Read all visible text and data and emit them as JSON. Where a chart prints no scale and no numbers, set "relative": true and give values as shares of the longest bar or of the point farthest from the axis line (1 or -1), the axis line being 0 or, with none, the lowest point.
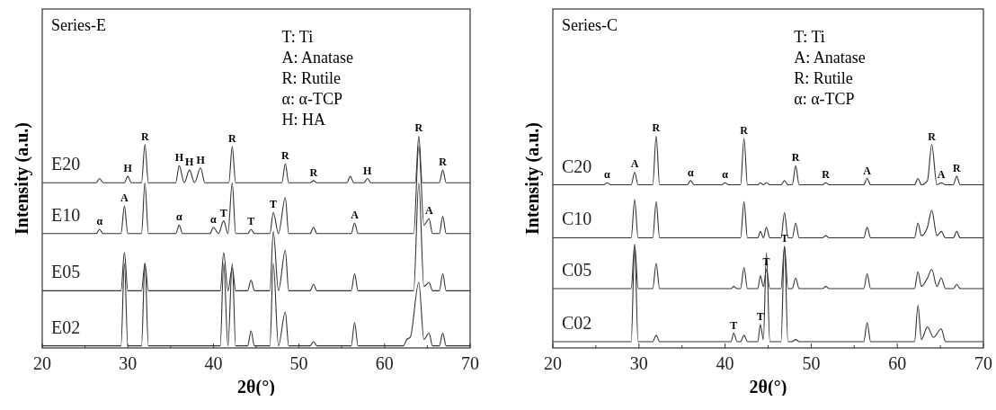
{
  "chart_data": [
    {
      "type": "line",
      "relative": true,
      "xlabel": "2θ(°)",
      "ylabel": "Intensity (a.u.)",
      "xlim": [
        20,
        70
      ],
      "xticks": [
        20,
        {
          "value": 25,
          "label": null
        },
        30,
        {
          "value": 35,
          "label": null
        },
        40,
        {
          "value": 45,
          "label": null
        },
        50,
        {
          "value": 55,
          "label": null
        },
        60,
        {
          "value": 65,
          "label": null
        },
        70
      ],
      "series": [
        {
          "name": "E20",
          "color": "#333333",
          "x": [
            20,
            26.3,
            26.7,
            27.1,
            29.6,
            30,
            30.4,
            31.6,
            32,
            32.4,
            35.6,
            36,
            36.6,
            37.2,
            37.8,
            38.5,
            39,
            41.8,
            42.2,
            42.6,
            48,
            48.4,
            48.8,
            51.3,
            51.7,
            52.1,
            55.6,
            56,
            56.4,
            57.6,
            58,
            58.4,
            63.6,
            64,
            64.4,
            66.4,
            66.8,
            67.2,
            70
          ],
          "values": [
            0.78,
            0.78,
            0.8,
            0.78,
            0.78,
            0.81,
            0.78,
            0.78,
            0.96,
            0.78,
            0.78,
            0.86,
            0.78,
            0.84,
            0.78,
            0.85,
            0.78,
            0.78,
            0.95,
            0.78,
            0.78,
            0.87,
            0.78,
            0.78,
            0.79,
            0.78,
            0.78,
            0.81,
            0.78,
            0.78,
            0.8,
            0.78,
            0.78,
            1,
            0.78,
            0.78,
            0.84,
            0.78,
            0.78
          ]
        },
        {
          "name": "E10",
          "color": "#333333",
          "x": [
            20,
            26.3,
            26.7,
            27.1,
            29.2,
            29.6,
            30,
            31.6,
            32,
            32.4,
            35.6,
            36,
            36.4,
            39.6,
            40,
            40.6,
            41.2,
            41.7,
            42.2,
            42.6,
            44,
            44.4,
            44.8,
            46.6,
            47,
            47.6,
            48.4,
            48.8,
            51.3,
            51.7,
            52.1,
            56.1,
            56.5,
            56.9,
            63.4,
            64,
            64.6,
            65.2,
            65.6,
            66.4,
            66.8,
            67.2,
            70
          ],
          "values": [
            0.54,
            0.54,
            0.56,
            0.54,
            0.54,
            0.67,
            0.54,
            0.54,
            0.78,
            0.54,
            0.54,
            0.58,
            0.54,
            0.54,
            0.57,
            0.54,
            0.6,
            0.54,
            0.78,
            0.54,
            0.54,
            0.56,
            0.54,
            0.54,
            0.64,
            0.54,
            0.71,
            0.54,
            0.54,
            0.57,
            0.54,
            0.54,
            0.59,
            0.54,
            0.54,
            0.95,
            0.58,
            0.61,
            0.54,
            0.54,
            0.62,
            0.54,
            0.54
          ]
        },
        {
          "name": "E05",
          "color": "#333333",
          "x": [
            20,
            29.2,
            29.6,
            30,
            31.6,
            32,
            32.4,
            40.8,
            41.2,
            41.7,
            42.2,
            42.6,
            44,
            44.4,
            44.8,
            46.6,
            47,
            47.6,
            48.4,
            48.8,
            51.3,
            51.7,
            52.1,
            56.1,
            56.5,
            56.9,
            63.4,
            64,
            64.6,
            65.2,
            65.6,
            66.4,
            66.8,
            67.2,
            70
          ],
          "values": [
            0.27,
            0.27,
            0.45,
            0.27,
            0.27,
            0.4,
            0.27,
            0.27,
            0.45,
            0.27,
            0.38,
            0.27,
            0.27,
            0.32,
            0.27,
            0.27,
            0.55,
            0.27,
            0.46,
            0.27,
            0.27,
            0.3,
            0.27,
            0.27,
            0.35,
            0.27,
            0.27,
            0.78,
            0.29,
            0.31,
            0.27,
            0.27,
            0.35,
            0.27,
            0.27
          ]
        },
        {
          "name": "E02",
          "color": "#333333",
          "x": [
            20,
            29.2,
            29.6,
            30,
            31.6,
            32,
            32.4,
            40.8,
            41.2,
            41.7,
            42.2,
            42.6,
            44,
            44.4,
            44.8,
            46.6,
            47,
            47.6,
            48.4,
            48.8,
            51.3,
            51.7,
            52.1,
            56.1,
            56.5,
            56.9,
            62.2,
            62.6,
            63,
            64,
            64.6,
            65.2,
            65.6,
            66.4,
            66.8,
            67.2,
            70
          ],
          "values": [
            0.01,
            0.01,
            0.4,
            0.01,
            0.01,
            0.4,
            0.01,
            0.01,
            0.4,
            0.01,
            0.4,
            0.01,
            0.01,
            0.08,
            0.01,
            0.01,
            0.4,
            0.01,
            0.17,
            0.01,
            0.01,
            0.03,
            0.01,
            0.01,
            0.12,
            0.01,
            0.01,
            0.04,
            0.05,
            0.31,
            0.04,
            0.07,
            0.01,
            0.01,
            0.07,
            0.01,
            0.01
          ]
        }
      ],
      "annotations": [
        "Series-E",
        "T: Ti",
        "A: Anatase",
        "R: Rutile",
        "α: α-TCP",
        "H: HA",
        {
          "text": "H",
          "x": 30,
          "y": 0.81
        },
        {
          "text": "R",
          "x": 32,
          "y": 0.96
        },
        {
          "text": "H",
          "x": 36,
          "y": 0.86
        },
        {
          "text": "H",
          "x": 37.2,
          "y": 0.84
        },
        {
          "text": "H",
          "x": 38.5,
          "y": 0.85
        },
        {
          "text": "R",
          "x": 42.2,
          "y": 0.95
        },
        {
          "text": "R",
          "x": 48.4,
          "y": 0.87
        },
        {
          "text": "R",
          "x": 51.7,
          "y": 0.79
        },
        {
          "text": "H",
          "x": 58,
          "y": 0.8
        },
        {
          "text": "R",
          "x": 64,
          "y": 1
        },
        {
          "text": "R",
          "x": 66.8,
          "y": 0.84
        },
        {
          "text": "α",
          "x": 26.7,
          "y": 0.56
        },
        {
          "text": "A",
          "x": 29.6,
          "y": 0.67
        },
        {
          "text": "α",
          "x": 36,
          "y": 0.58
        },
        {
          "text": "α",
          "x": 40,
          "y": 0.57
        },
        {
          "text": "T",
          "x": 41.2,
          "y": 0.6
        },
        {
          "text": "T",
          "x": 44.4,
          "y": 0.56
        },
        {
          "text": "T",
          "x": 47,
          "y": 0.64
        },
        {
          "text": "A",
          "x": 56.5,
          "y": 0.59
        },
        {
          "text": "A",
          "x": 65.2,
          "y": 0.61
        }
      ]
    },
    {
      "type": "line",
      "relative": true,
      "xlabel": "2θ(°)",
      "ylabel": "Intensity (a.u.)",
      "xlim": [
        20,
        70
      ],
      "xticks": [
        20,
        {
          "value": 25,
          "label": null
        },
        30,
        {
          "value": 35,
          "label": null
        },
        40,
        {
          "value": 45,
          "label": null
        },
        50,
        {
          "value": 55,
          "label": null
        },
        60,
        {
          "value": 65,
          "label": null
        },
        70
      ],
      "series": [
        {
          "name": "C20",
          "color": "#333333",
          "x": [
            20,
            25.9,
            26.3,
            26.7,
            29.1,
            29.5,
            29.9,
            31.6,
            32,
            32.4,
            35.6,
            36,
            36.4,
            39.6,
            40,
            40.4,
            41.8,
            42.2,
            42.6,
            43.8,
            44.1,
            44.45,
            44.8,
            45.2,
            46.5,
            46.9,
            47.3,
            47.8,
            48.2,
            48.6,
            51.3,
            51.7,
            52.1,
            56.1,
            56.5,
            56.9,
            62,
            62.4,
            62.8,
            63.5,
            64,
            64.6,
            65.1,
            65.6,
            66.5,
            66.9,
            67.3,
            70
          ],
          "values": [
            0.77,
            0.77,
            0.78,
            0.77,
            0.77,
            0.83,
            0.77,
            0.77,
            1,
            0.77,
            0.77,
            0.79,
            0.77,
            0.77,
            0.78,
            0.77,
            0.77,
            0.99,
            0.77,
            0.77,
            0.78,
            0.77,
            0.78,
            0.77,
            0.77,
            0.79,
            0.77,
            0.77,
            0.86,
            0.77,
            0.77,
            0.78,
            0.77,
            0.77,
            0.8,
            0.77,
            0.77,
            0.8,
            0.77,
            0.79,
            0.96,
            0.77,
            0.78,
            0.77,
            0.77,
            0.81,
            0.77,
            0.77
          ]
        },
        {
          "name": "C10",
          "color": "#333333",
          "x": [
            20,
            29.1,
            29.5,
            29.9,
            31.6,
            32,
            32.4,
            41.8,
            42.2,
            42.6,
            43.8,
            44.1,
            44.45,
            44.8,
            45.2,
            46.5,
            46.9,
            47.3,
            47.8,
            48.2,
            48.6,
            51.3,
            51.7,
            52.1,
            56.1,
            56.5,
            56.9,
            62,
            62.4,
            62.8,
            63.5,
            64,
            64.6,
            65.1,
            65.6,
            66.5,
            66.9,
            67.3,
            70
          ],
          "values": [
            0.52,
            0.52,
            0.7,
            0.52,
            0.52,
            0.69,
            0.52,
            0.52,
            0.69,
            0.52,
            0.52,
            0.55,
            0.52,
            0.57,
            0.52,
            0.52,
            0.64,
            0.52,
            0.52,
            0.59,
            0.52,
            0.52,
            0.53,
            0.52,
            0.52,
            0.57,
            0.52,
            0.52,
            0.59,
            0.53,
            0.57,
            0.65,
            0.53,
            0.55,
            0.52,
            0.52,
            0.55,
            0.52,
            0.52
          ]
        },
        {
          "name": "C05",
          "color": "#333333",
          "x": [
            20,
            29.1,
            29.5,
            29.9,
            31.6,
            32,
            32.4,
            40.7,
            41,
            41.4,
            41.8,
            42.2,
            42.6,
            43.8,
            44.1,
            44.45,
            44.8,
            45.2,
            46.5,
            46.9,
            47.3,
            47.8,
            48.2,
            48.6,
            51.3,
            51.7,
            52.1,
            56.1,
            56.5,
            56.9,
            62,
            62.4,
            62.8,
            63.5,
            64,
            64.6,
            65.1,
            65.6,
            66.5,
            66.9,
            67.3,
            70
          ],
          "values": [
            0.28,
            0.28,
            0.49,
            0.28,
            0.28,
            0.4,
            0.28,
            0.28,
            0.29,
            0.28,
            0.28,
            0.38,
            0.28,
            0.28,
            0.34,
            0.29,
            0.37,
            0.28,
            0.28,
            0.48,
            0.28,
            0.28,
            0.33,
            0.28,
            0.28,
            0.29,
            0.28,
            0.28,
            0.35,
            0.28,
            0.28,
            0.36,
            0.29,
            0.33,
            0.37,
            0.29,
            0.33,
            0.28,
            0.28,
            0.3,
            0.28,
            0.28
          ]
        },
        {
          "name": "C02",
          "color": "#333333",
          "x": [
            20,
            29.1,
            29.5,
            29.9,
            31.6,
            32,
            32.4,
            40.7,
            41,
            41.4,
            41.8,
            42.2,
            42.6,
            43.8,
            44.1,
            44.45,
            44.8,
            45.2,
            46.5,
            46.9,
            47.3,
            47.8,
            48.2,
            48.6,
            56.1,
            56.5,
            56.9,
            62,
            62.4,
            62.8,
            63.5,
            64.2,
            65.1,
            65.6,
            70
          ],
          "values": [
            0.03,
            0.03,
            0.48,
            0.03,
            0.03,
            0.06,
            0.03,
            0.03,
            0.07,
            0.03,
            0.03,
            0.06,
            0.03,
            0.03,
            0.11,
            0.04,
            0.45,
            0.03,
            0.03,
            0.48,
            0.03,
            0.03,
            0.04,
            0.03,
            0.03,
            0.12,
            0.03,
            0.03,
            0.2,
            0.04,
            0.1,
            0.05,
            0.09,
            0.03,
            0.03
          ]
        }
      ],
      "annotations": [
        "Series-C",
        "T: Ti",
        "A: Anatase",
        "R: Rutile",
        "α: α-TCP",
        {
          "text": "α",
          "x": 26.3,
          "y": 0.78
        },
        {
          "text": "A",
          "x": 29.5,
          "y": 0.83
        },
        {
          "text": "R",
          "x": 32,
          "y": 1
        },
        {
          "text": "α",
          "x": 36,
          "y": 0.79
        },
        {
          "text": "α",
          "x": 40,
          "y": 0.78
        },
        {
          "text": "R",
          "x": 42.2,
          "y": 0.99
        },
        {
          "text": "R",
          "x": 48.2,
          "y": 0.86
        },
        {
          "text": "R",
          "x": 51.7,
          "y": 0.78
        },
        {
          "text": "A",
          "x": 56.5,
          "y": 0.8
        },
        {
          "text": "R",
          "x": 64,
          "y": 0.96
        },
        {
          "text": "A",
          "x": 65.1,
          "y": 0.78
        },
        {
          "text": "R",
          "x": 66.9,
          "y": 0.81
        },
        {
          "text": "T",
          "x": 44.8,
          "y": 0.37
        },
        {
          "text": "T",
          "x": 46.9,
          "y": 0.48
        },
        {
          "text": "T",
          "x": 41,
          "y": 0.07
        },
        {
          "text": "T",
          "x": 44.1,
          "y": 0.11
        }
      ]
    }
  ]
}
